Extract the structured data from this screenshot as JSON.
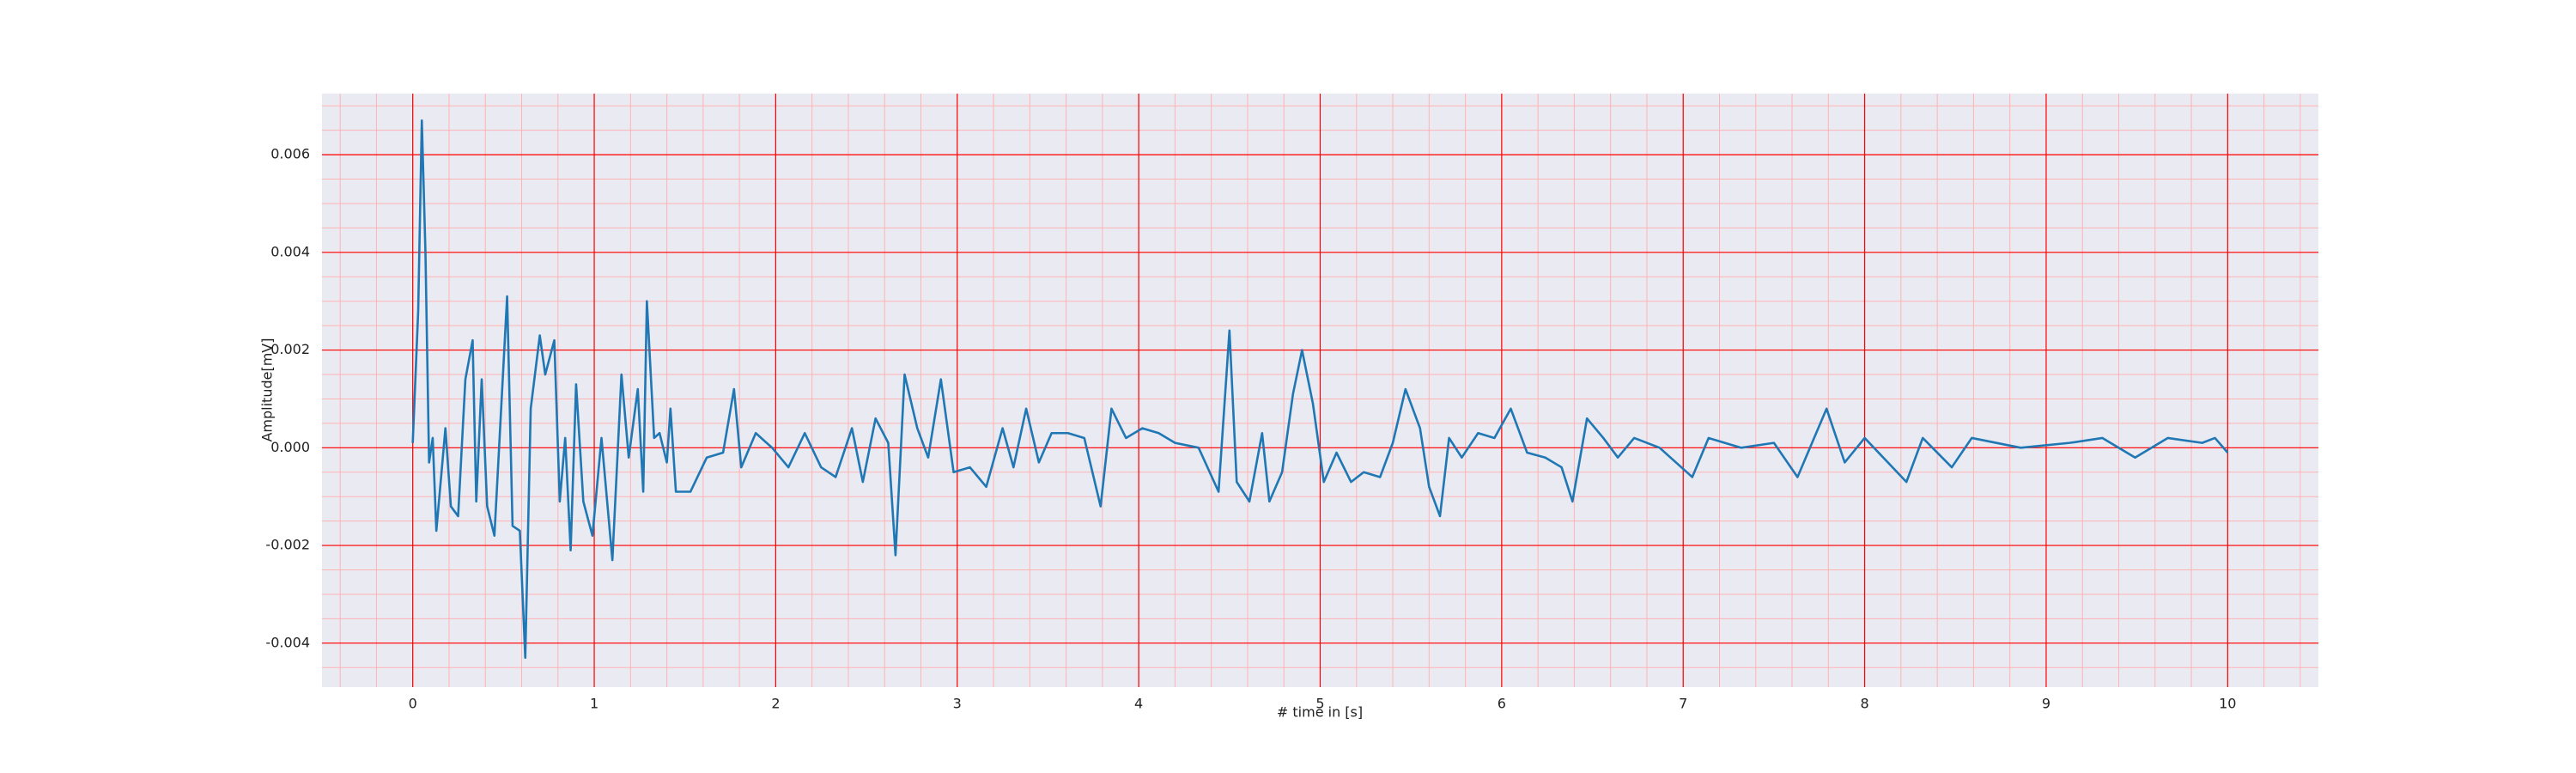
{
  "chart_data": {
    "type": "line",
    "xlabel": "# time in [s]",
    "ylabel": "Amplitude[mV]",
    "x": [
      0.0,
      0.03,
      0.05,
      0.07,
      0.09,
      0.11,
      0.13,
      0.18,
      0.21,
      0.25,
      0.29,
      0.33,
      0.35,
      0.38,
      0.41,
      0.45,
      0.52,
      0.55,
      0.59,
      0.62,
      0.65,
      0.7,
      0.73,
      0.78,
      0.81,
      0.84,
      0.87,
      0.9,
      0.94,
      0.99,
      1.04,
      1.1,
      1.15,
      1.19,
      1.24,
      1.27,
      1.29,
      1.33,
      1.36,
      1.4,
      1.42,
      1.45,
      1.53,
      1.62,
      1.71,
      1.77,
      1.81,
      1.89,
      1.98,
      2.07,
      2.16,
      2.25,
      2.33,
      2.42,
      2.48,
      2.55,
      2.62,
      2.66,
      2.71,
      2.78,
      2.84,
      2.91,
      2.98,
      3.07,
      3.16,
      3.25,
      3.31,
      3.38,
      3.45,
      3.52,
      3.61,
      3.7,
      3.79,
      3.85,
      3.93,
      4.02,
      4.11,
      4.2,
      4.33,
      4.44,
      4.5,
      4.54,
      4.61,
      4.68,
      4.72,
      4.79,
      4.85,
      4.9,
      4.96,
      5.02,
      5.09,
      5.17,
      5.24,
      5.33,
      5.4,
      5.47,
      5.55,
      5.6,
      5.66,
      5.71,
      5.78,
      5.87,
      5.96,
      6.05,
      6.14,
      6.24,
      6.33,
      6.39,
      6.47,
      6.56,
      6.64,
      6.73,
      6.87,
      7.05,
      7.14,
      7.32,
      7.5,
      7.63,
      7.79,
      7.89,
      8.0,
      8.23,
      8.32,
      8.48,
      8.59,
      8.86,
      9.13,
      9.31,
      9.49,
      9.67,
      9.86,
      9.93,
      10.0
    ],
    "values": [
      0.0001,
      0.0028,
      0.0067,
      0.004,
      -0.0003,
      0.0002,
      -0.0017,
      0.0004,
      -0.0012,
      -0.0014,
      0.0014,
      0.0022,
      -0.0011,
      0.0014,
      -0.0012,
      -0.0018,
      0.0031,
      -0.0016,
      -0.0017,
      -0.0043,
      0.0008,
      0.0023,
      0.0015,
      0.0022,
      -0.0011,
      0.0002,
      -0.0021,
      0.0013,
      -0.0011,
      -0.0018,
      0.0002,
      -0.0023,
      0.0015,
      -0.0002,
      0.0012,
      -0.0009,
      0.003,
      0.0002,
      0.0003,
      -0.0003,
      0.0008,
      -0.0009,
      -0.0009,
      -0.0002,
      -0.0001,
      0.0012,
      -0.0004,
      0.0003,
      0.0,
      -0.0004,
      0.0003,
      -0.0004,
      -0.0006,
      0.0004,
      -0.0007,
      0.0006,
      0.0001,
      -0.0022,
      0.0015,
      0.0004,
      -0.0002,
      0.0014,
      -0.0005,
      -0.0004,
      -0.0008,
      0.0004,
      -0.0004,
      0.0008,
      -0.0003,
      0.0003,
      0.0003,
      0.0002,
      -0.0012,
      0.0008,
      0.0002,
      0.0004,
      0.0003,
      0.0001,
      0.0,
      -0.0009,
      0.0024,
      -0.0007,
      -0.0011,
      0.0003,
      -0.0011,
      -0.0005,
      0.0011,
      0.002,
      0.0009,
      -0.0007,
      -0.0001,
      -0.0007,
      -0.0005,
      -0.0006,
      0.0001,
      0.0012,
      0.0004,
      -0.0008,
      -0.0014,
      0.0002,
      -0.0002,
      0.0003,
      0.0002,
      0.0008,
      -0.0001,
      -0.0002,
      -0.0004,
      -0.0011,
      0.0006,
      0.0002,
      -0.0002,
      0.0002,
      0.0,
      -0.0006,
      0.0002,
      0.0,
      0.0001,
      -0.0006,
      0.0008,
      -0.0003,
      0.0002,
      -0.0007,
      0.0002,
      -0.0004,
      0.0002,
      0.0,
      0.0001,
      0.0002,
      -0.0002,
      0.0002,
      0.0001,
      0.0002,
      -0.0001
    ],
    "color": "#1f77b4",
    "xlim": [
      -0.5,
      10.5
    ],
    "xticks": [
      0,
      1,
      2,
      3,
      4,
      5,
      6,
      7,
      8,
      9,
      10
    ],
    "ylim": [
      -0.0049,
      0.00725
    ],
    "yticks": [
      -0.004,
      -0.002,
      {
        "value": 0,
        "label": "0.000"
      },
      0.002,
      0.004,
      0.006
    ],
    "grid": true,
    "grid_color": "#ff0000",
    "minor_grid": true,
    "minor_grid_color": "#ffb3b3",
    "xminor_step": 0.2,
    "yminor_step": 0.0005,
    "background": "#eaeaf2"
  }
}
